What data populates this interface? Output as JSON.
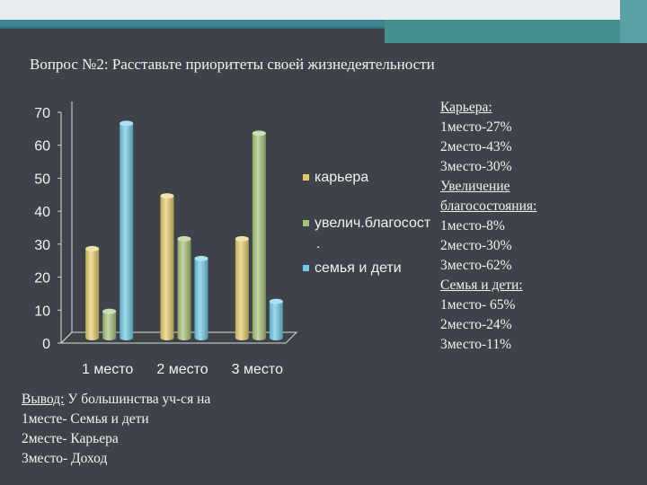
{
  "slide_title": "Вопрос №2: Расставьте приоритеты своей жизнедеятельности",
  "chart_data": {
    "type": "bar",
    "categories": [
      "1 место",
      "2 место",
      "3 место"
    ],
    "series": [
      {
        "name": "карьера",
        "values": [
          27,
          43,
          30
        ],
        "color": "#e3cb6a"
      },
      {
        "name": "увелич.благосост",
        "values": [
          8,
          30,
          62
        ],
        "color": "#a6c077"
      },
      {
        "name": "семья и дети",
        "values": [
          65,
          24,
          11
        ],
        "color": "#6ec8e4"
      }
    ],
    "y_ticks": [
      "0",
      "10",
      "20",
      "30",
      "40",
      "50",
      "60",
      "70"
    ],
    "ylim": [
      0,
      70
    ],
    "legend_position": "right",
    "legend_stray_mark": ".",
    "grid": false,
    "style": "3d-cylinder"
  },
  "right_notes": [
    {
      "text": "Карьера:",
      "underline": true
    },
    {
      "text": "1место-27%",
      "underline": false
    },
    {
      "text": "2место-43%",
      "underline": false
    },
    {
      "text": "3место-30%",
      "underline": false
    },
    {
      "text": "Увеличение",
      "underline": true
    },
    {
      "text": "благосостояния:",
      "underline": true
    },
    {
      "text": "1место-8%",
      "underline": false
    },
    {
      "text": "2место-30%",
      "underline": false
    },
    {
      "text": "3место-62%",
      "underline": false
    },
    {
      "text": "Семья и дети:",
      "underline": true
    },
    {
      "text": "1место- 65%",
      "underline": false
    },
    {
      "text": "2место-24%",
      "underline": false
    },
    {
      "text": "3место-11%",
      "underline": false
    }
  ],
  "conclusion": {
    "label": "Вывод:",
    "text": " У большинства уч-ся на",
    "lines": [
      "1месте- Семья и дети",
      "2месте- Карьера",
      "3место- Доход"
    ]
  }
}
